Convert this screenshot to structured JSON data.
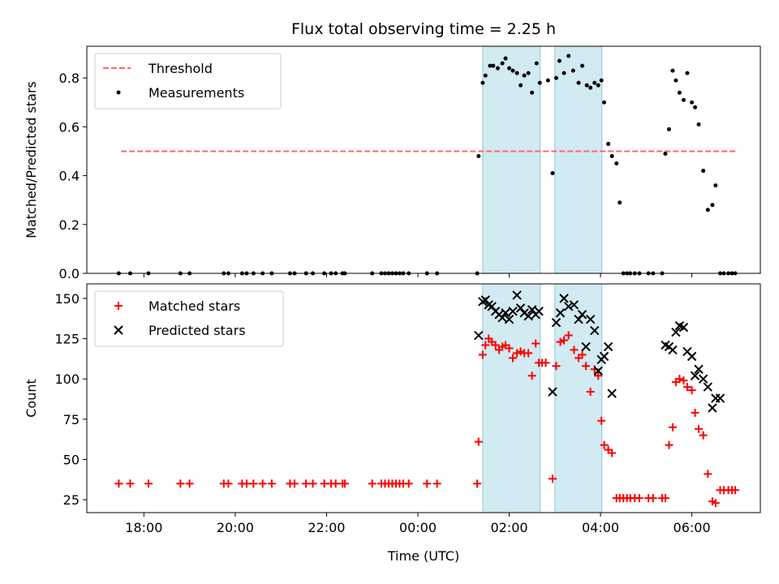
{
  "chart_data": {
    "type": "scatter",
    "title": "Flux total observing time = 2.25 h",
    "xlabel": "Time (UTC)",
    "x_unit": "hours since 00:00 UTC (negative = previous day)",
    "xlim": [
      -7.25,
      7.5
    ],
    "x_ticks": [
      -6,
      -4,
      -2,
      0,
      2,
      4,
      6
    ],
    "x_tick_labels": [
      "18:00",
      "20:00",
      "22:00",
      "00:00",
      "02:00",
      "04:00",
      "06:00"
    ],
    "shaded_intervals": [
      [
        1.42,
        2.68
      ],
      [
        3.0,
        4.03
      ]
    ],
    "shade_color": "#add8e6",
    "panels": [
      {
        "ylabel": "Matched/Predicted stars",
        "ylim": [
          0,
          0.93
        ],
        "y_ticks": [
          0,
          0.2,
          0.4,
          0.6,
          0.8
        ],
        "y_tick_labels": [
          "0.0",
          "0.2",
          "0.4",
          "0.6",
          "0.8"
        ],
        "legend_position": "upper left",
        "threshold": {
          "name": "Threshold",
          "value": 0.5,
          "x_range": [
            -6.5,
            7.0
          ],
          "color": "#ff6666"
        },
        "series": [
          {
            "name": "Measurements",
            "marker": "dot",
            "color": "#000000",
            "x": [
              -6.55,
              -6.3,
              -5.9,
              -5.2,
              -5.0,
              -4.25,
              -4.15,
              -3.85,
              -3.75,
              -3.6,
              -3.4,
              -3.2,
              -2.8,
              -2.7,
              -2.45,
              -2.3,
              -2.05,
              -1.9,
              -1.8,
              -1.65,
              -1.6,
              -1.0,
              -0.8,
              -0.72,
              -0.64,
              -0.56,
              -0.48,
              -0.4,
              -0.32,
              -0.2,
              0.2,
              0.42,
              1.3,
              1.33,
              1.42,
              1.48,
              1.58,
              1.65,
              1.75,
              1.85,
              1.92,
              2.0,
              2.08,
              2.17,
              2.25,
              2.33,
              2.42,
              2.5,
              2.6,
              2.67,
              2.85,
              2.95,
              3.03,
              3.1,
              3.2,
              3.3,
              3.4,
              3.52,
              3.6,
              3.7,
              3.78,
              3.87,
              3.95,
              4.02,
              4.08,
              4.17,
              4.25,
              4.35,
              4.42,
              4.5,
              4.58,
              4.65,
              4.75,
              4.85,
              5.05,
              5.15,
              5.35,
              5.42,
              5.5,
              5.58,
              5.65,
              5.73,
              5.82,
              5.9,
              6.0,
              6.07,
              6.15,
              6.25,
              6.35,
              6.45,
              6.52,
              6.62,
              6.7,
              6.8,
              6.88,
              6.95
            ],
            "y": [
              0,
              0,
              0,
              0,
              0,
              0,
              0,
              0,
              0,
              0,
              0,
              0,
              0,
              0,
              0,
              0,
              0,
              0,
              0,
              0,
              0,
              0,
              0,
              0,
              0,
              0,
              0,
              0,
              0,
              0,
              0,
              0,
              0,
              0.48,
              0.78,
              0.81,
              0.85,
              0.85,
              0.84,
              0.86,
              0.88,
              0.84,
              0.83,
              0.82,
              0.77,
              0.81,
              0.82,
              0.74,
              0.86,
              0.78,
              0.79,
              0.41,
              0.8,
              0.87,
              0.82,
              0.89,
              0.83,
              0.78,
              0.85,
              0.77,
              0.76,
              0.78,
              0.77,
              0.79,
              0.7,
              0.53,
              0.48,
              0.45,
              0.29,
              0,
              0,
              0,
              0,
              0,
              0,
              0,
              0,
              0.49,
              0.59,
              0.83,
              0.79,
              0.74,
              0.71,
              0.82,
              0.7,
              0.68,
              0.61,
              0.42,
              0.26,
              0.28,
              0.36,
              0,
              0,
              0,
              0,
              0
            ]
          }
        ]
      },
      {
        "ylabel": "Count",
        "ylim": [
          17,
          159
        ],
        "y_ticks": [
          25,
          50,
          75,
          100,
          125,
          150
        ],
        "y_tick_labels": [
          "25",
          "50",
          "75",
          "100",
          "125",
          "150"
        ],
        "legend_position": "upper left",
        "series": [
          {
            "name": "Matched stars",
            "marker": "plus",
            "color": "#ff0000",
            "x": [
              -6.55,
              -6.3,
              -5.9,
              -5.2,
              -5.0,
              -4.25,
              -4.15,
              -3.85,
              -3.75,
              -3.6,
              -3.4,
              -3.2,
              -2.8,
              -2.7,
              -2.45,
              -2.3,
              -2.05,
              -1.9,
              -1.8,
              -1.65,
              -1.6,
              -1.0,
              -0.8,
              -0.72,
              -0.64,
              -0.56,
              -0.48,
              -0.4,
              -0.32,
              -0.2,
              0.2,
              0.42,
              1.3,
              1.33,
              1.42,
              1.48,
              1.55,
              1.62,
              1.7,
              1.78,
              1.85,
              1.92,
              2.0,
              2.08,
              2.17,
              2.25,
              2.33,
              2.42,
              2.5,
              2.58,
              2.65,
              2.72,
              2.8,
              2.95,
              3.03,
              3.12,
              3.2,
              3.3,
              3.42,
              3.52,
              3.6,
              3.68,
              3.78,
              3.87,
              3.95,
              4.02,
              4.08,
              4.17,
              4.25,
              4.35,
              4.42,
              4.5,
              4.58,
              4.65,
              4.75,
              4.85,
              5.05,
              5.15,
              5.35,
              5.42,
              5.5,
              5.58,
              5.65,
              5.73,
              5.82,
              5.9,
              6.0,
              6.07,
              6.15,
              6.25,
              6.35,
              6.45,
              6.52,
              6.62,
              6.7,
              6.8,
              6.88,
              6.95
            ],
            "y": [
              35,
              35,
              35,
              35,
              35,
              35,
              35,
              35,
              35,
              35,
              35,
              35,
              35,
              35,
              35,
              35,
              35,
              35,
              35,
              35,
              35,
              35,
              35,
              35,
              35,
              35,
              35,
              35,
              35,
              35,
              35,
              35,
              35,
              61,
              115,
              121,
              125,
              123,
              121,
              118,
              120,
              121,
              119,
              113,
              116,
              117,
              116,
              116,
              102,
              122,
              110,
              110,
              110,
              38,
              108,
              123,
              124,
              127,
              118,
              113,
              115,
              108,
              92,
              106,
              102,
              74,
              59,
              56,
              54,
              26,
              26,
              26,
              26,
              26,
              26,
              26,
              26,
              26,
              26,
              26,
              59,
              70,
              98,
              100,
              99,
              95,
              93,
              79,
              69,
              65,
              41,
              24,
              23,
              31,
              31,
              31,
              31,
              31
            ]
          },
          {
            "name": "Predicted stars",
            "marker": "x",
            "color": "#000000",
            "x": [
              1.33,
              1.42,
              1.48,
              1.55,
              1.62,
              1.7,
              1.78,
              1.85,
              1.92,
              2.0,
              2.08,
              2.17,
              2.25,
              2.33,
              2.42,
              2.5,
              2.58,
              2.65,
              2.95,
              3.03,
              3.12,
              3.2,
              3.3,
              3.42,
              3.52,
              3.6,
              3.68,
              3.78,
              3.87,
              3.95,
              4.02,
              4.08,
              4.17,
              4.25,
              5.42,
              5.5,
              5.58,
              5.65,
              5.73,
              5.82,
              5.9,
              6.0,
              6.07,
              6.15,
              6.25,
              6.35,
              6.45,
              6.52,
              6.62
            ],
            "y": [
              127,
              148,
              149,
              146,
              145,
              142,
              140,
              138,
              141,
              137,
              142,
              152,
              144,
              141,
              139,
              143,
              140,
              142,
              92,
              135,
              141,
              150,
              145,
              146,
              137,
              140,
              120,
              137,
              130,
              105,
              112,
              114,
              120,
              91,
              121,
              120,
              118,
              129,
              133,
              132,
              117,
              114,
              102,
              106,
              100,
              95,
              82,
              88,
              88
            ]
          }
        ]
      }
    ]
  }
}
